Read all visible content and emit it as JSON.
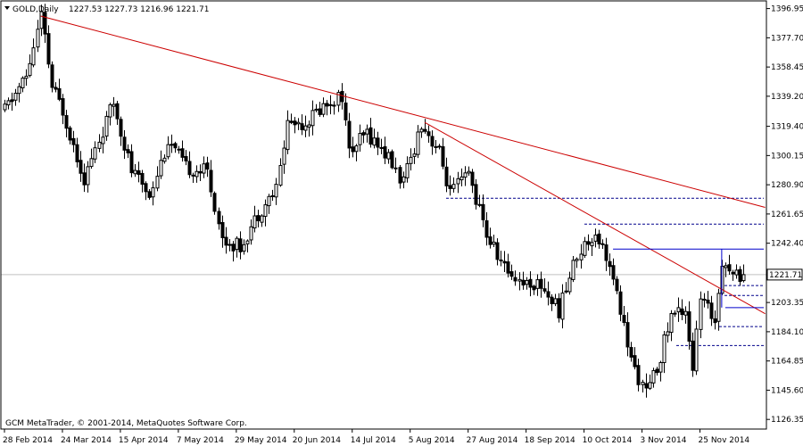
{
  "header": {
    "symbol": "GOLD,Daily",
    "ohlc": "1227.53 1227.73 1216.96 1221.71"
  },
  "footer": {
    "copyright": "GCM MetaTrader, © 2001-2014, MetaQuotes Software Corp."
  },
  "colors": {
    "background": "#ffffff",
    "axis": "#000000",
    "candle": "#000000",
    "trendline": "#cc0000",
    "channel": "#0000cc",
    "level": "#00008b",
    "bidline": "#c0c0c0"
  },
  "chart_data": {
    "type": "candlestick",
    "title": "GOLD,Daily",
    "ylim": [
      1120,
      1402
    ],
    "y_ticks": [
      "1396.95",
      "1377.70",
      "1358.45",
      "1339.20",
      "1319.40",
      "1300.15",
      "1280.90",
      "1261.65",
      "1242.40",
      "1203.35",
      "1184.10",
      "1164.85",
      "1145.60",
      "1126.35"
    ],
    "x_ticks": [
      "28 Feb 2014",
      "24 Mar 2014",
      "15 Apr 2014",
      "7 May 2014",
      "29 May 2014",
      "20 Jun 2014",
      "14 Jul 2014",
      "5 Aug 2014",
      "27 Aug 2014",
      "18 Sep 2014",
      "10 Oct 2014",
      "3 Nov 2014",
      "25 Nov 2014"
    ],
    "current_price": "1221.71",
    "bars_count": 205,
    "anchors": [
      {
        "bar": 0,
        "price": 1330
      },
      {
        "bar": 6,
        "price": 1352
      },
      {
        "bar": 10,
        "price": 1392
      },
      {
        "bar": 13,
        "price": 1345
      },
      {
        "bar": 16,
        "price": 1330
      },
      {
        "bar": 22,
        "price": 1285
      },
      {
        "bar": 30,
        "price": 1335
      },
      {
        "bar": 35,
        "price": 1290
      },
      {
        "bar": 40,
        "price": 1275
      },
      {
        "bar": 45,
        "price": 1310
      },
      {
        "bar": 50,
        "price": 1292
      },
      {
        "bar": 56,
        "price": 1290
      },
      {
        "bar": 60,
        "price": 1245
      },
      {
        "bar": 65,
        "price": 1240
      },
      {
        "bar": 70,
        "price": 1262
      },
      {
        "bar": 75,
        "price": 1278
      },
      {
        "bar": 78,
        "price": 1322
      },
      {
        "bar": 83,
        "price": 1322
      },
      {
        "bar": 88,
        "price": 1333
      },
      {
        "bar": 93,
        "price": 1340
      },
      {
        "bar": 95,
        "price": 1302
      },
      {
        "bar": 100,
        "price": 1315
      },
      {
        "bar": 105,
        "price": 1302
      },
      {
        "bar": 110,
        "price": 1282
      },
      {
        "bar": 115,
        "price": 1322
      },
      {
        "bar": 120,
        "price": 1302
      },
      {
        "bar": 123,
        "price": 1275
      },
      {
        "bar": 128,
        "price": 1288
      },
      {
        "bar": 133,
        "price": 1248
      },
      {
        "bar": 138,
        "price": 1226
      },
      {
        "bar": 143,
        "price": 1217
      },
      {
        "bar": 148,
        "price": 1215
      },
      {
        "bar": 153,
        "price": 1198
      },
      {
        "bar": 158,
        "price": 1235
      },
      {
        "bar": 163,
        "price": 1250
      },
      {
        "bar": 166,
        "price": 1235
      },
      {
        "bar": 170,
        "price": 1198
      },
      {
        "bar": 173,
        "price": 1165
      },
      {
        "bar": 177,
        "price": 1143
      },
      {
        "bar": 180,
        "price": 1160
      },
      {
        "bar": 184,
        "price": 1195
      },
      {
        "bar": 188,
        "price": 1200
      },
      {
        "bar": 190,
        "price": 1160
      },
      {
        "bar": 192,
        "price": 1205
      },
      {
        "bar": 196,
        "price": 1192
      },
      {
        "bar": 198,
        "price": 1232
      },
      {
        "bar": 201,
        "price": 1222
      },
      {
        "bar": 204,
        "price": 1221.7
      }
    ],
    "trendlines": [
      {
        "from": {
          "bar": 10,
          "price": 1392
        },
        "to": {
          "bar": 210,
          "price": 1266
        }
      },
      {
        "from": {
          "bar": 116,
          "price": 1322
        },
        "to": {
          "bar": 210,
          "price": 1196
        }
      }
    ],
    "channel_lines": [
      {
        "from": {
          "bar": 168,
          "price": 1238.5
        },
        "to": {
          "bar": 210,
          "price": 1238.5
        }
      },
      {
        "from": {
          "bar": 199,
          "price": 1200
        },
        "to": {
          "bar": 210,
          "price": 1200
        }
      },
      {
        "from": {
          "bar": 198,
          "price": 1238.5
        },
        "to": {
          "bar": 198,
          "price": 1200
        }
      }
    ],
    "levels": [
      1272,
      1255,
      1214.5,
      1208,
      1187.5,
      1175
    ]
  }
}
